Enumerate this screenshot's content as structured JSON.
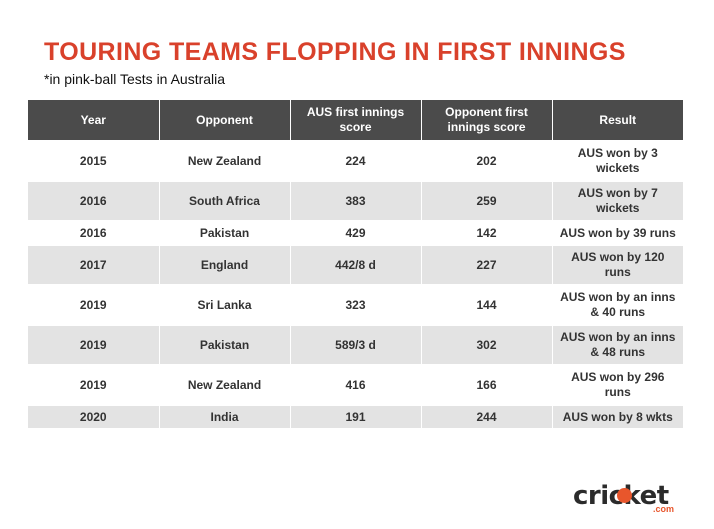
{
  "header": {
    "title": "TOURING TEAMS FLOPPING IN FIRST INNINGS",
    "subtitle": "*in pink-ball Tests in Australia"
  },
  "chart_data": {
    "type": "table",
    "columns": [
      "Year",
      "Opponent",
      "AUS first innings score",
      "Opponent first innings score",
      "Result"
    ],
    "rows": [
      [
        "2015",
        "New Zealand",
        "224",
        "202",
        "AUS won by 3 wickets"
      ],
      [
        "2016",
        "South Africa",
        "383",
        "259",
        "AUS won by 7 wickets"
      ],
      [
        "2016",
        "Pakistan",
        "429",
        "142",
        "AUS won by 39 runs"
      ],
      [
        "2017",
        "England",
        "442/8 d",
        "227",
        "AUS won by 120 runs"
      ],
      [
        "2019",
        "Sri Lanka",
        "323",
        "144",
        "AUS won by an inns & 40 runs"
      ],
      [
        "2019",
        "Pakistan",
        "589/3 d",
        "302",
        "AUS won by an inns & 48 runs"
      ],
      [
        "2019",
        "New Zealand",
        "416",
        "166",
        "AUS won by 296 runs"
      ],
      [
        "2020",
        "India",
        "191",
        "244",
        "AUS won by 8 wkts"
      ]
    ]
  },
  "logo": {
    "text": "cricket",
    "suffix": ".com"
  },
  "colors": {
    "title": "#d9412b",
    "header_bg": "#4b4b4b",
    "alt_row_bg": "#e3e3e3",
    "logo_accent": "#e8562c"
  }
}
